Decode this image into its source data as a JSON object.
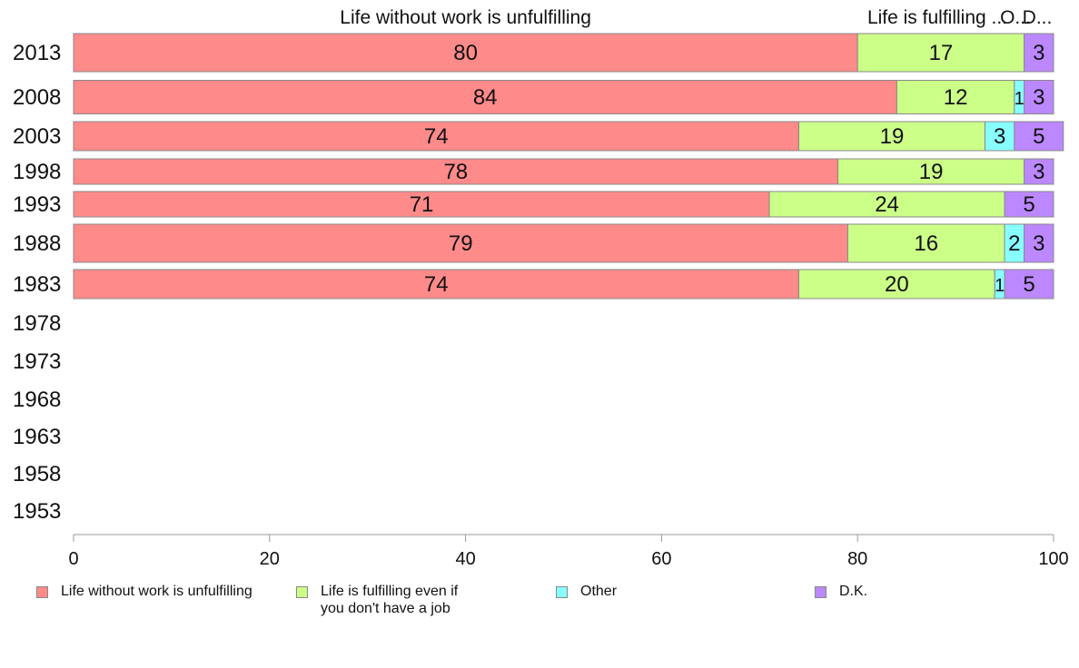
{
  "chart_data": {
    "type": "bar",
    "orientation": "horizontal",
    "stacked": true,
    "categories": [
      "2013",
      "2008",
      "2003",
      "1998",
      "1993",
      "1988",
      "1983",
      "1978",
      "1973",
      "1968",
      "1963",
      "1958",
      "1953"
    ],
    "series": [
      {
        "name": "Life without work is unfulfilling",
        "values": [
          80,
          84,
          74,
          78,
          71,
          79,
          74,
          null,
          null,
          null,
          null,
          null,
          null
        ],
        "color": "#ff8a8a"
      },
      {
        "name": "Life is fulfilling even if you don't have a job",
        "values": [
          17,
          12,
          19,
          19,
          24,
          16,
          20,
          null,
          null,
          null,
          null,
          null,
          null
        ],
        "color": "#ccff88"
      },
      {
        "name": "Other",
        "values": [
          0,
          1,
          3,
          0,
          0,
          2,
          1,
          null,
          null,
          null,
          null,
          null,
          null
        ],
        "color": "#88ffff"
      },
      {
        "name": "D.K.",
        "values": [
          3,
          3,
          5,
          3,
          5,
          3,
          5,
          null,
          null,
          null,
          null,
          null,
          null
        ],
        "color": "#bb88ff"
      }
    ],
    "top_headers": [
      {
        "text": "Life without work is unfulfilling",
        "series": 0
      },
      {
        "text": "Life is fulfilling ...",
        "series": 1
      },
      {
        "text": "O...",
        "series": 2
      },
      {
        "text": "D...",
        "series": 3
      }
    ],
    "xlim": [
      0,
      100
    ],
    "xticks": [
      0,
      20,
      40,
      60,
      80,
      100
    ],
    "xlabel": "",
    "ylabel": "",
    "grid": false,
    "legend": {
      "placement": "bottom",
      "items": [
        {
          "label": "Life without work is unfulfilling",
          "color": "#ff8a8a"
        },
        {
          "label": "Life is fulfilling even if\nyou don't have a job",
          "color": "#ccff88"
        },
        {
          "label": "Other",
          "color": "#88ffff"
        },
        {
          "label": "D.K.",
          "color": "#bb88ff"
        }
      ]
    }
  }
}
